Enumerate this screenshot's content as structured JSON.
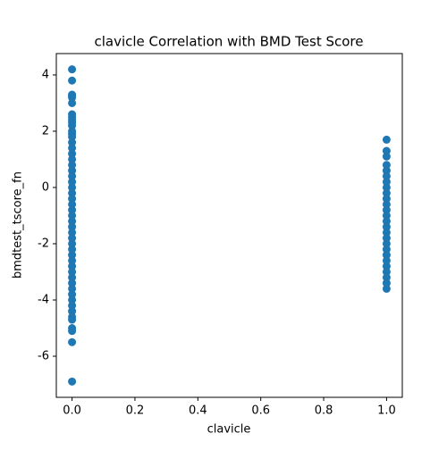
{
  "chart_data": {
    "type": "scatter",
    "title": "clavicle Correlation with BMD Test Score",
    "xlabel": "clavicle",
    "ylabel": "bmdtest_tscore_fn",
    "color": "#1f77b4",
    "x": [
      0,
      0,
      0,
      0,
      0,
      0,
      0,
      0,
      0,
      0,
      0,
      0,
      0,
      0,
      0,
      0,
      0,
      0,
      0,
      0,
      0,
      0,
      0,
      0,
      0,
      0,
      0,
      0,
      0,
      0,
      0,
      0,
      0,
      0,
      0,
      0,
      0,
      0,
      0,
      0,
      0,
      0,
      0,
      0,
      0,
      0,
      0,
      0,
      0,
      0,
      0,
      1,
      1,
      1,
      1,
      1,
      1,
      1,
      1,
      1,
      1,
      1,
      1,
      1,
      1,
      1,
      1,
      1,
      1,
      1,
      1,
      1,
      1,
      1,
      1,
      1,
      1
    ],
    "values": [
      4.2,
      3.8,
      3.3,
      3.25,
      3.2,
      3.0,
      2.6,
      2.5,
      2.4,
      2.3,
      2.2,
      2.0,
      1.9,
      1.8,
      1.6,
      1.4,
      1.2,
      1.0,
      0.8,
      0.6,
      0.4,
      0.2,
      0.0,
      -0.2,
      -0.4,
      -0.6,
      -0.8,
      -1.0,
      -1.2,
      -1.4,
      -1.6,
      -1.8,
      -2.0,
      -2.2,
      -2.4,
      -2.6,
      -2.8,
      -3.0,
      -3.2,
      -3.4,
      -3.6,
      -3.8,
      -4.0,
      -4.2,
      -4.4,
      -4.6,
      -4.7,
      -5.0,
      -5.1,
      -5.5,
      -6.9,
      1.7,
      1.3,
      1.1,
      0.8,
      0.6,
      0.4,
      0.2,
      0.0,
      -0.2,
      -0.4,
      -0.6,
      -0.8,
      -1.0,
      -1.2,
      -1.4,
      -1.6,
      -1.8,
      -2.0,
      -2.2,
      -2.4,
      -2.6,
      -2.8,
      -3.0,
      -3.2,
      -3.4,
      -3.6
    ],
    "xlim": [
      -0.05,
      1.05
    ],
    "xticks": [
      {
        "value": 0,
        "label": "0.0"
      },
      {
        "value": 0.2,
        "label": "0.2"
      },
      {
        "value": 0.4,
        "label": "0.4"
      },
      {
        "value": 0.6,
        "label": "0.6"
      },
      {
        "value": 0.8,
        "label": "0.8"
      },
      {
        "value": 1,
        "label": "1.0"
      }
    ],
    "ylim": [
      -7.46,
      4.76
    ],
    "yticks": [
      -6,
      -4,
      -2,
      0,
      2,
      4
    ]
  }
}
